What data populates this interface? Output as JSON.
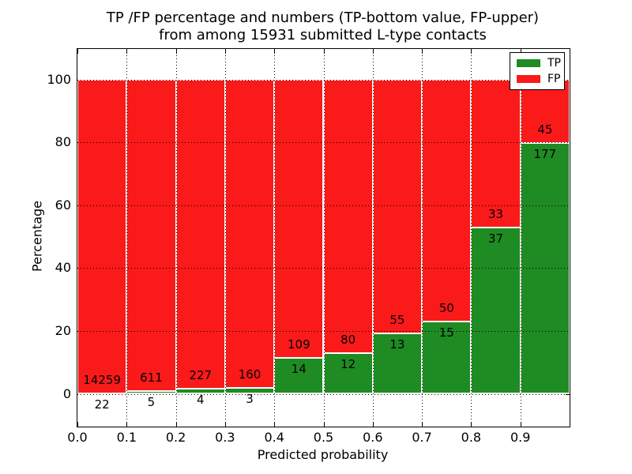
{
  "title": {
    "line1": "TP /FP percentage and numbers (TP-bottom value, FP-upper)",
    "line2": "from among 15931 submitted L-type contacts"
  },
  "legend": {
    "items": [
      {
        "label": "TP",
        "color": "#1f8b23"
      },
      {
        "label": "FP",
        "color": "#fa1a1a"
      }
    ],
    "position": "upper-right"
  },
  "chart_data": {
    "type": "bar",
    "stacked": true,
    "title": "TP /FP percentage and numbers (TP-bottom value, FP-upper) from among 15931 submitted L-type contacts",
    "xlabel": "Predicted probability",
    "ylabel": "Percentage",
    "categories": [
      "0.0-0.1",
      "0.1-0.2",
      "0.2-0.3",
      "0.3-0.4",
      "0.4-0.5",
      "0.5-0.6",
      "0.6-0.7",
      "0.7-0.8",
      "0.8-0.9",
      "0.9-1.0"
    ],
    "series": [
      {
        "name": "TP",
        "color": "#1f8b23",
        "counts": [
          22,
          5,
          4,
          3,
          14,
          12,
          13,
          15,
          37,
          177
        ]
      },
      {
        "name": "FP",
        "color": "#fa1a1a",
        "counts": [
          14259,
          611,
          227,
          160,
          109,
          80,
          55,
          50,
          33,
          45
        ]
      }
    ],
    "tp_percent": [
      0.15,
      0.81,
      1.73,
      1.84,
      11.38,
      13.04,
      19.12,
      23.08,
      52.86,
      79.73
    ],
    "total_contacts": 15931,
    "bar_value_labels": "FP count above boundary, TP count below boundary",
    "xticks": [
      "0.0",
      "0.1",
      "0.2",
      "0.3",
      "0.4",
      "0.5",
      "0.6",
      "0.7",
      "0.8",
      "0.9"
    ],
    "yticks": [
      0,
      20,
      40,
      60,
      80,
      100
    ],
    "xlim": [
      0.0,
      1.0
    ],
    "ylim": [
      -10.5,
      109.5
    ],
    "grid": "dotted",
    "bar_edge_color": "#ffffff"
  }
}
